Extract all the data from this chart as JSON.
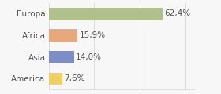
{
  "categories": [
    "Europa",
    "Africa",
    "Asia",
    "America"
  ],
  "values": [
    62.4,
    15.9,
    14.0,
    7.6
  ],
  "labels": [
    "62,4%",
    "15,9%",
    "14,0%",
    "7,6%"
  ],
  "bar_colors": [
    "#afc08a",
    "#e8a87c",
    "#7b8ec8",
    "#f0d060"
  ],
  "background_color": "#f7f7f7",
  "xlim": [
    0,
    80
  ],
  "bar_height": 0.55,
  "label_fontsize": 7.5,
  "tick_fontsize": 7.5,
  "grid_color": "#d8d8d8",
  "grid_xticks": [
    0,
    25,
    50,
    75
  ]
}
